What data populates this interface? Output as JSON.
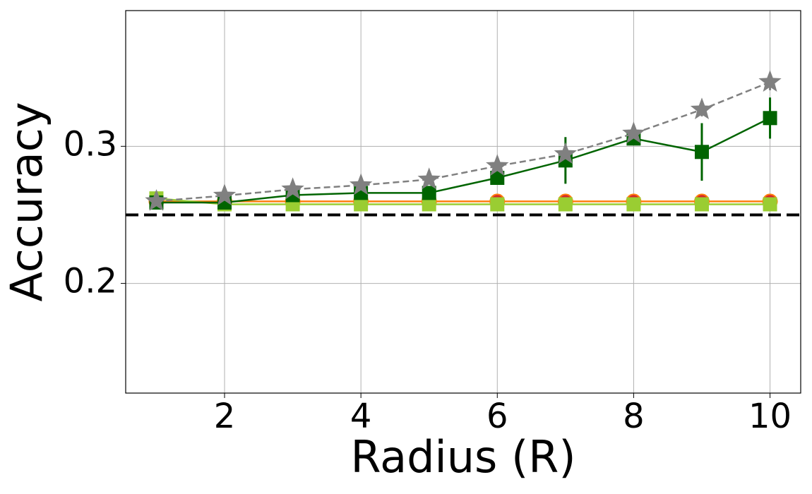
{
  "chart_data": {
    "type": "line",
    "x_label": "Radius (R)",
    "y_label": "Accuracy",
    "x": [
      1,
      2,
      3,
      4,
      5,
      6,
      7,
      8,
      9,
      10
    ],
    "xlim": [
      0.55,
      10.45
    ],
    "ylim": [
      0.12,
      0.399
    ],
    "xticks": [
      2,
      4,
      6,
      8,
      10
    ],
    "yticks": [
      0.2,
      0.3
    ],
    "grid": true,
    "hline": {
      "value": 0.25,
      "color": "#000000",
      "dash": true
    },
    "series": [
      {
        "color": "#ff7f0e",
        "marker": "circle",
        "marker_color": "#d62728",
        "dash": false,
        "values": [
          0.2598,
          0.2598,
          0.2598,
          0.2598,
          0.2598,
          0.2598,
          0.2598,
          0.2598,
          0.2598,
          0.2598
        ]
      },
      {
        "color": "#9acd32",
        "marker": "square",
        "marker_color": "#9acd32",
        "dash": false,
        "values": [
          0.262,
          0.2577,
          0.2577,
          0.2577,
          0.2577,
          0.2577,
          0.2577,
          0.2577,
          0.2577,
          0.2577
        ]
      },
      {
        "color": "#006400",
        "marker": "square",
        "marker_color": "#006400",
        "dash": false,
        "values": [
          0.259,
          0.259,
          0.2644,
          0.266,
          0.266,
          0.277,
          0.2897,
          0.3057,
          0.2959,
          0.3206
        ],
        "errors": [
          0.005,
          0.001,
          0.002,
          0.001,
          0.001,
          0.003,
          0.017,
          0.002,
          0.021,
          0.015
        ]
      },
      {
        "color": "#808080",
        "marker": "star",
        "marker_color": "#808080",
        "dash": true,
        "values": [
          0.26,
          0.264,
          0.2686,
          0.2716,
          0.2758,
          0.2856,
          0.2943,
          0.3093,
          0.3268,
          0.3469
        ],
        "errors": [
          0.002,
          0.001,
          0.001,
          0.001,
          0.001,
          0.001,
          0.002,
          0.002,
          0.005,
          0.006
        ]
      }
    ]
  }
}
